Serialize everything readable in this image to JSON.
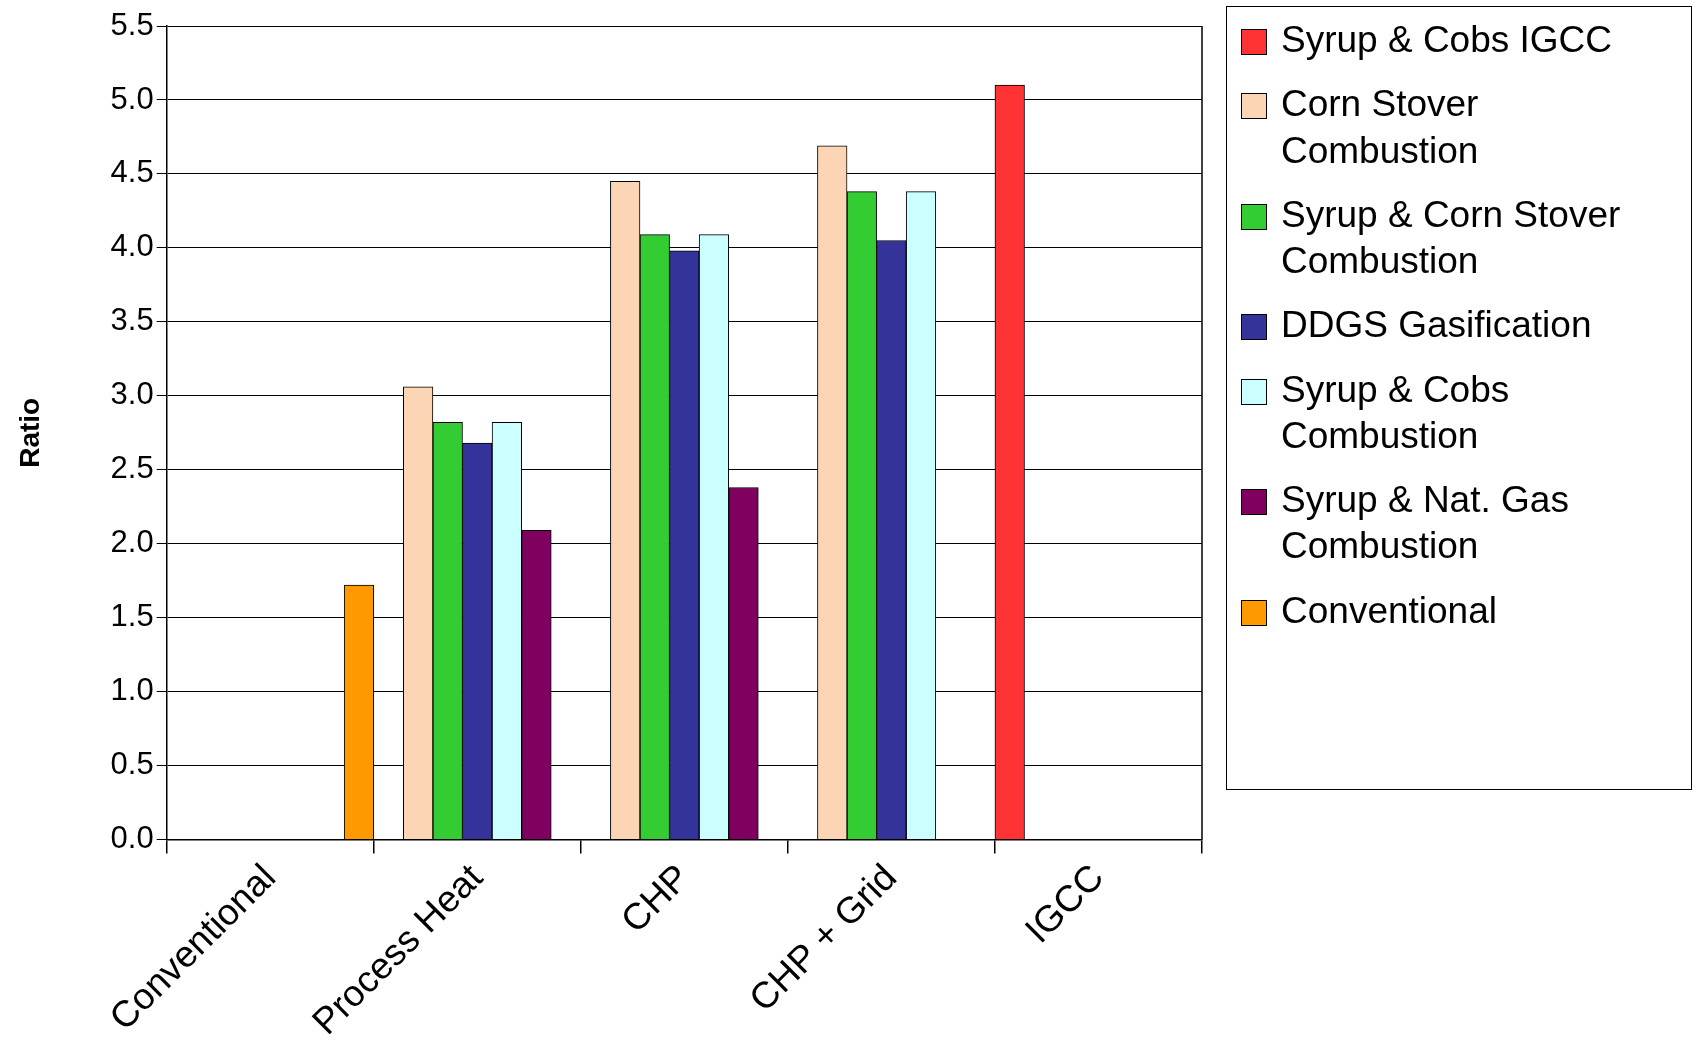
{
  "chart_data": {
    "type": "bar",
    "ylabel": "Ratio",
    "categories": [
      "Conventional",
      "Process Heat",
      "CHP",
      "CHP + Grid",
      "IGCC"
    ],
    "ylim": [
      0,
      5.5
    ],
    "yticks": [
      {
        "value": 0,
        "label": "0.0"
      },
      {
        "value": 0.5,
        "label": "0.5"
      },
      {
        "value": 1,
        "label": "1.0"
      },
      {
        "value": 1.5,
        "label": "1.5"
      },
      {
        "value": 2,
        "label": "2.0"
      },
      {
        "value": 2.5,
        "label": "2.5"
      },
      {
        "value": 3,
        "label": "3.0"
      },
      {
        "value": 3.5,
        "label": "3.5"
      },
      {
        "value": 4,
        "label": "4.0"
      },
      {
        "value": 4.5,
        "label": "4.5"
      },
      {
        "value": 5,
        "label": "5.0"
      },
      {
        "value": 5.5,
        "label": "5.5"
      }
    ],
    "grid": "y",
    "legend": "right",
    "series": [
      {
        "name": "Syrup & Cobs IGCC",
        "color": "#ff3333",
        "values": [
          null,
          null,
          null,
          null,
          5.1
        ]
      },
      {
        "name": "Corn Stover Combustion",
        "color": "#fcd5b4",
        "values": [
          null,
          3.06,
          4.45,
          4.69,
          null
        ]
      },
      {
        "name": "Syrup & Corn Stover Combustion",
        "color": "#33cc33",
        "values": [
          null,
          2.82,
          4.09,
          4.38,
          null
        ]
      },
      {
        "name": "DDGS Gasification",
        "color": "#333399",
        "values": [
          null,
          2.68,
          3.98,
          4.05,
          null
        ]
      },
      {
        "name": "Syrup & Cobs Combustion",
        "color": "#ccffff",
        "values": [
          null,
          2.82,
          4.09,
          4.38,
          null
        ]
      },
      {
        "name": "Syrup & Nat. Gas Combustion",
        "color": "#800060",
        "values": [
          null,
          2.09,
          2.38,
          null,
          null
        ]
      },
      {
        "name": "Conventional",
        "color": "#ff9900",
        "values": [
          1.72,
          null,
          null,
          null,
          null
        ]
      }
    ]
  }
}
